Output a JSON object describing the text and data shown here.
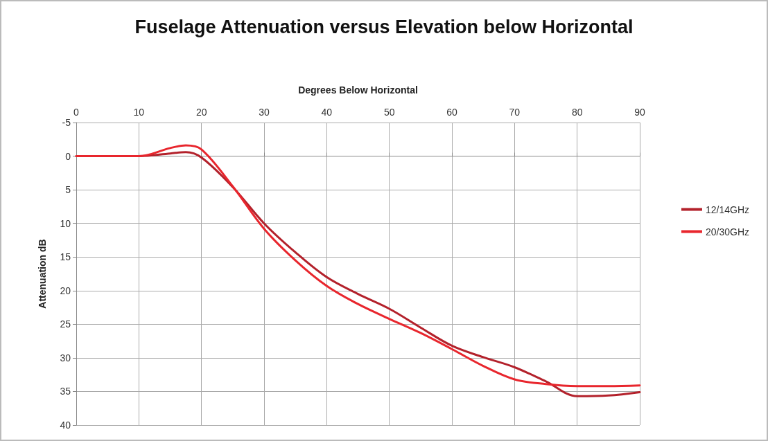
{
  "chart_data": {
    "type": "line",
    "title": "Fuselage Attenuation versus Elevation below Horizontal",
    "xlabel": "Degrees Below Horizontal",
    "ylabel": "Attenuation dB",
    "x": [
      0,
      5,
      10,
      15,
      17.5,
      20,
      25,
      30,
      35,
      40,
      45,
      50,
      55,
      60,
      65,
      70,
      75,
      80,
      85,
      90
    ],
    "series": [
      {
        "name": "12/14GHz",
        "color": "#b3212b",
        "values": [
          0,
          0,
          0,
          -0.4,
          -0.6,
          0.2,
          4.6,
          10,
          14.3,
          18,
          20.5,
          22.7,
          25.5,
          28.2,
          29.9,
          31.4,
          33.5,
          35.7,
          35.6,
          35.1
        ]
      },
      {
        "name": "20/30GHz",
        "color": "#e8262d",
        "values": [
          0,
          0,
          0,
          -1.2,
          -1.6,
          -1,
          4.5,
          10.8,
          15.5,
          19.3,
          22,
          24.2,
          26.3,
          28.7,
          31.2,
          33.2,
          33.9,
          34.2,
          34.2,
          34.1
        ]
      }
    ],
    "xlim": [
      0,
      90
    ],
    "xticks": [
      0,
      10,
      20,
      30,
      40,
      50,
      60,
      70,
      80,
      90
    ],
    "ylim": [
      40,
      -5
    ],
    "yticks": [
      -5,
      0,
      5,
      10,
      15,
      20,
      25,
      30,
      35,
      40
    ],
    "grid": true,
    "legend": "right",
    "marker": "none",
    "line_style": "solid"
  }
}
